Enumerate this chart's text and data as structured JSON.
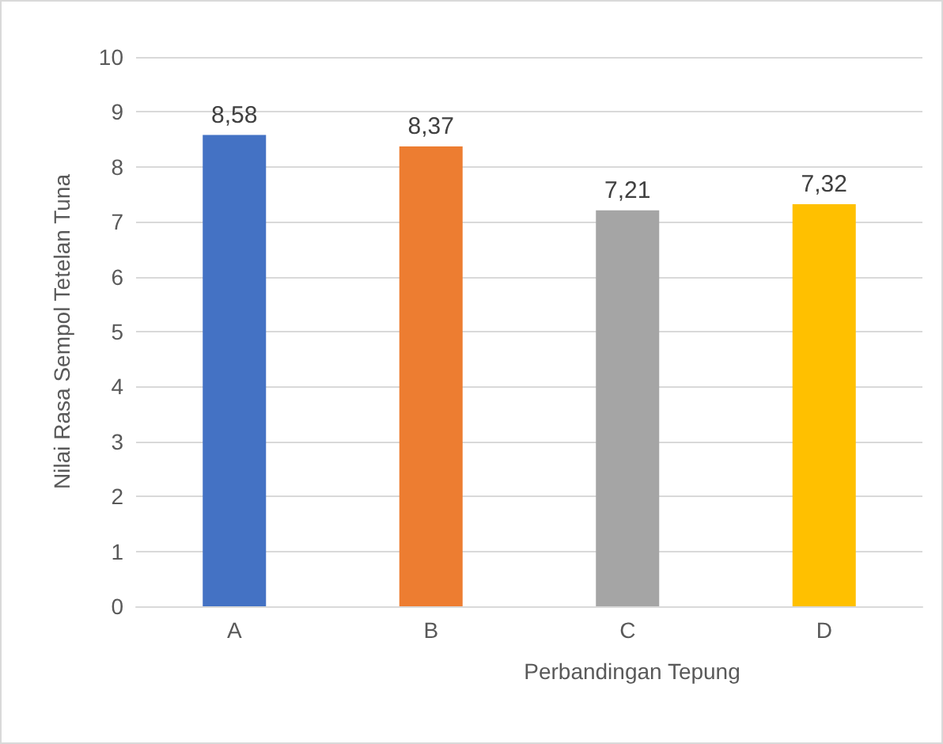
{
  "chart_data": {
    "type": "bar",
    "xlabel": "Perbandingan Tepung",
    "ylabel": "Nilai Rasa Sempol Tetelan Tuna",
    "categories": [
      "A",
      "B",
      "C",
      "D"
    ],
    "values": [
      8.58,
      8.37,
      7.21,
      7.32
    ],
    "colors": [
      "#4472c4",
      "#ed7d31",
      "#a5a5a5",
      "#ffc000"
    ],
    "value_labels": [
      "8,58",
      "8,37",
      "7,21",
      "7,32"
    ],
    "ylim": [
      0,
      10
    ],
    "yticks": [
      0,
      1,
      2,
      3,
      4,
      5,
      6,
      7,
      8,
      9,
      10
    ],
    "grid": "y"
  }
}
